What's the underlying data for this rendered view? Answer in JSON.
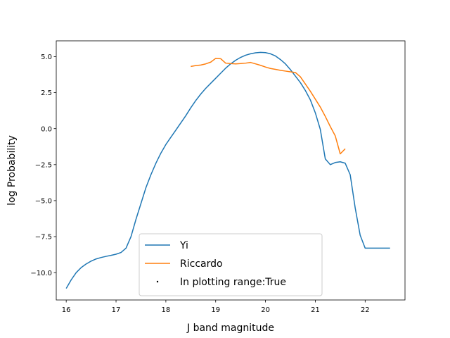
{
  "chart_data": {
    "type": "line",
    "title": "",
    "xlabel": "J band magnitude",
    "ylabel": "log Probability",
    "xlim": [
      15.8,
      22.8
    ],
    "ylim": [
      -11.9,
      6.1
    ],
    "xticks": [
      16,
      17,
      18,
      19,
      20,
      21,
      22
    ],
    "yticks": [
      -10.0,
      -7.5,
      -5.0,
      -2.5,
      0.0,
      2.5,
      5.0
    ],
    "xtick_labels": [
      "16",
      "17",
      "18",
      "19",
      "20",
      "21",
      "22"
    ],
    "ytick_labels": [
      "−10.0",
      "−7.5",
      "−5.0",
      "−2.5",
      "0.0",
      "2.5",
      "5.0"
    ],
    "grid": false,
    "legend_position": "lower center",
    "series": [
      {
        "name": "Yi",
        "color": "#1f77b4",
        "x": [
          16.0,
          16.1,
          16.2,
          16.3,
          16.4,
          16.5,
          16.6,
          16.7,
          16.8,
          16.9,
          17.0,
          17.1,
          17.2,
          17.3,
          17.4,
          17.5,
          17.6,
          17.7,
          17.8,
          17.9,
          18.0,
          18.1,
          18.2,
          18.3,
          18.4,
          18.5,
          18.6,
          18.7,
          18.8,
          18.9,
          19.0,
          19.1,
          19.2,
          19.3,
          19.4,
          19.5,
          19.6,
          19.7,
          19.8,
          19.9,
          20.0,
          20.1,
          20.2,
          20.3,
          20.4,
          20.5,
          20.6,
          20.7,
          20.8,
          20.9,
          21.0,
          21.1,
          21.2,
          21.3,
          21.4,
          21.5,
          21.6,
          21.7,
          21.8,
          21.9,
          22.0,
          22.1,
          22.2,
          22.3,
          22.4,
          22.5
        ],
        "values": [
          -11.1,
          -10.5,
          -10.0,
          -9.65,
          -9.4,
          -9.2,
          -9.05,
          -8.95,
          -8.87,
          -8.8,
          -8.72,
          -8.6,
          -8.3,
          -7.5,
          -6.3,
          -5.2,
          -4.1,
          -3.2,
          -2.4,
          -1.7,
          -1.1,
          -0.6,
          -0.1,
          0.4,
          0.9,
          1.45,
          1.95,
          2.4,
          2.8,
          3.15,
          3.5,
          3.85,
          4.2,
          4.5,
          4.75,
          4.95,
          5.1,
          5.2,
          5.27,
          5.3,
          5.28,
          5.2,
          5.05,
          4.8,
          4.5,
          4.1,
          3.65,
          3.2,
          2.65,
          2.0,
          1.1,
          -0.05,
          -2.1,
          -2.5,
          -2.35,
          -2.3,
          -2.4,
          -3.2,
          -5.5,
          -7.4,
          -8.3,
          -8.3,
          -8.3,
          -8.3,
          -8.3,
          -8.3
        ]
      },
      {
        "name": "Riccardo",
        "color": "#ff7f0e",
        "x": [
          18.5,
          18.6,
          18.7,
          18.8,
          18.9,
          19.0,
          19.1,
          19.2,
          19.3,
          19.4,
          19.5,
          19.6,
          19.7,
          19.8,
          19.9,
          20.0,
          20.1,
          20.2,
          20.3,
          20.4,
          20.5,
          20.6,
          20.7,
          20.8,
          20.9,
          21.0,
          21.1,
          21.2,
          21.3,
          21.4,
          21.5,
          21.6
        ],
        "values": [
          4.32,
          4.38,
          4.42,
          4.5,
          4.62,
          4.88,
          4.86,
          4.55,
          4.52,
          4.5,
          4.52,
          4.55,
          4.6,
          4.5,
          4.4,
          4.28,
          4.18,
          4.12,
          4.05,
          4.0,
          3.95,
          3.9,
          3.6,
          3.1,
          2.6,
          2.05,
          1.5,
          0.85,
          0.15,
          -0.5,
          -1.75,
          -1.4
        ]
      }
    ],
    "legend_entries": [
      {
        "label": "Yi",
        "kind": "line",
        "color": "#1f77b4"
      },
      {
        "label": "Riccardo",
        "kind": "line",
        "color": "#ff7f0e"
      },
      {
        "label": "In plotting range:True",
        "kind": "point",
        "color": "#000000"
      }
    ]
  }
}
